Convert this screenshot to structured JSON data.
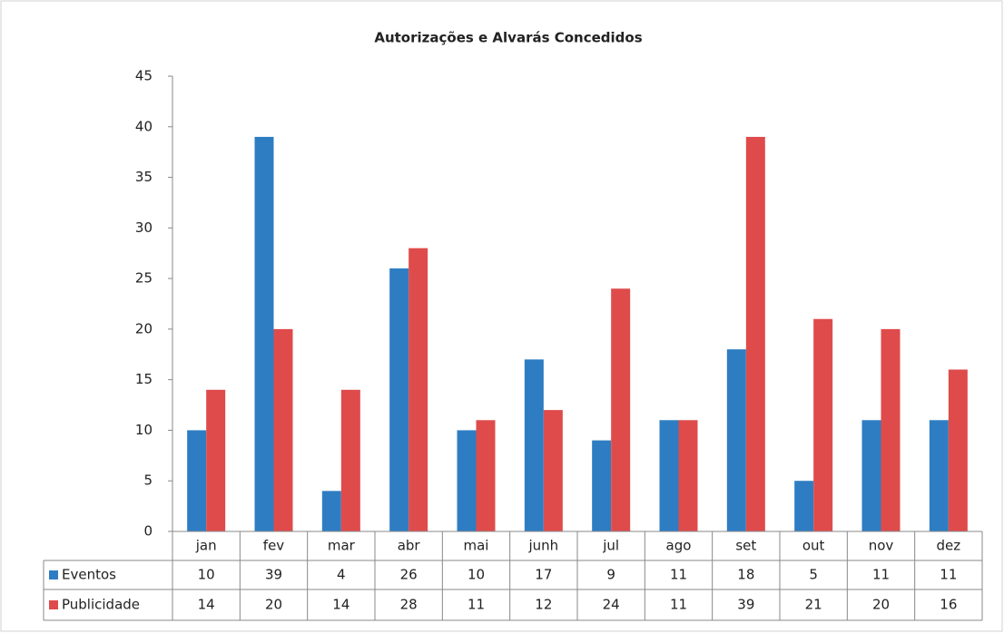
{
  "chart_data": {
    "type": "bar",
    "title": "Autorizações e Alvarás Concedidos",
    "categories": [
      "jan",
      "fev",
      "mar",
      "abr",
      "mai",
      "junh",
      "jul",
      "ago",
      "set",
      "out",
      "nov",
      "dez"
    ],
    "series": [
      {
        "name": "Eventos",
        "color": "#2e7dc3",
        "values": [
          10,
          39,
          4,
          26,
          10,
          17,
          9,
          11,
          18,
          5,
          11,
          11
        ]
      },
      {
        "name": "Publicidade",
        "color": "#df4b4b",
        "values": [
          14,
          20,
          14,
          28,
          11,
          12,
          24,
          11,
          39,
          21,
          20,
          16
        ]
      }
    ],
    "ylim": [
      0,
      45
    ],
    "yticks": [
      0,
      5,
      10,
      15,
      20,
      25,
      30,
      35,
      40,
      45
    ],
    "grid": false
  }
}
